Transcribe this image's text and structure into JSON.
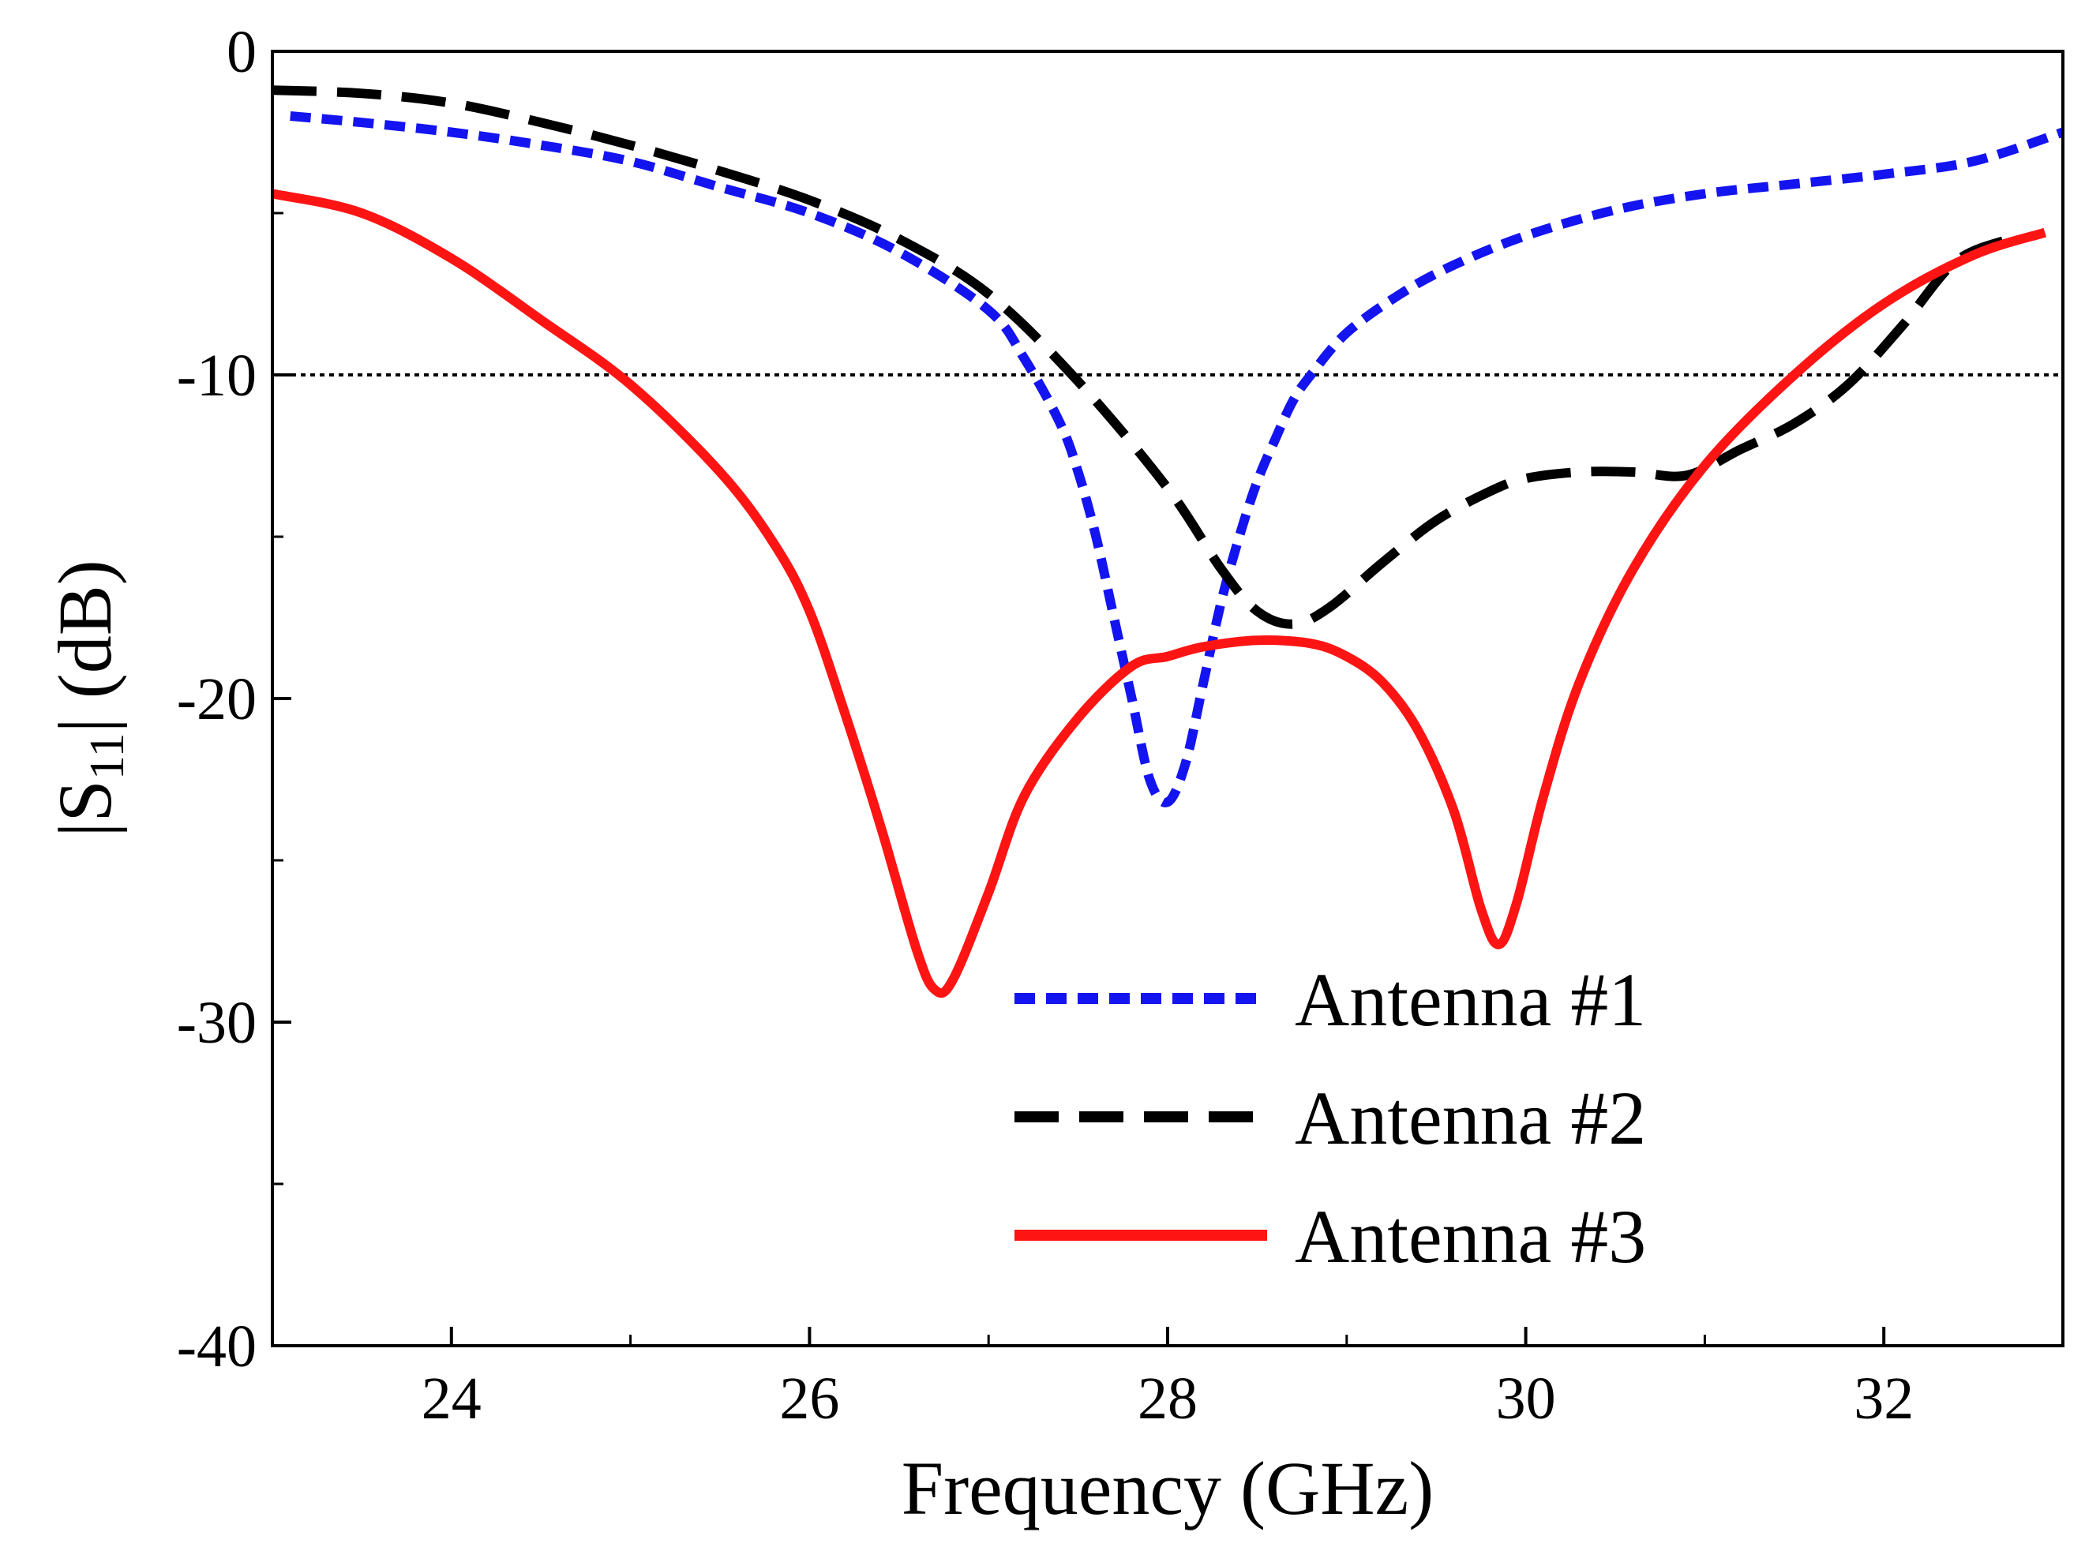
{
  "chart_data": {
    "type": "line",
    "title": "",
    "xlabel": "Frequency (GHz)",
    "ylabel": {
      "prefix": "|S",
      "subscript": "11",
      "suffix": "| (dB)"
    },
    "xlim": [
      23,
      33
    ],
    "ylim": [
      -40,
      0
    ],
    "x_ticks": [
      24,
      26,
      28,
      30,
      32
    ],
    "x_tick_labels": [
      "24",
      "26",
      "28",
      "30",
      "32"
    ],
    "x_minor_ticks": [
      25,
      27,
      29,
      31
    ],
    "y_ticks": [
      0,
      -10,
      -20,
      -30,
      -40
    ],
    "y_tick_labels": [
      "0",
      "-10",
      "-20",
      "-30",
      "-40"
    ],
    "y_minor_ticks": [
      -5,
      -15,
      -25,
      -35
    ],
    "reference_line": {
      "y": -10,
      "style": "dotted",
      "color": "#000000"
    },
    "legend": {
      "placement": "lower-right"
    },
    "series": [
      {
        "name": "Antenna #1",
        "color": "#1414f0",
        "style": "short-dash",
        "x": [
          23.1,
          23.5,
          24.0,
          24.5,
          25.0,
          25.5,
          26.0,
          26.5,
          27.0,
          27.2,
          27.4,
          27.5,
          27.6,
          27.7,
          27.8,
          27.9,
          28.0,
          28.1,
          28.2,
          28.3,
          28.4,
          28.5,
          28.6,
          28.7,
          28.8,
          29.0,
          29.3,
          29.6,
          30.0,
          30.5,
          31.0,
          31.5,
          32.0,
          32.5,
          33.0
        ],
        "y": [
          -2.0,
          -2.2,
          -2.5,
          -2.9,
          -3.4,
          -4.2,
          -5.0,
          -6.2,
          -8.0,
          -9.5,
          -11.5,
          -13.0,
          -15.0,
          -17.5,
          -20.0,
          -22.5,
          -23.2,
          -22.0,
          -19.5,
          -17.0,
          -15.0,
          -13.3,
          -12.0,
          -10.8,
          -10.0,
          -8.7,
          -7.5,
          -6.6,
          -5.7,
          -4.9,
          -4.4,
          -4.1,
          -3.8,
          -3.4,
          -2.5
        ]
      },
      {
        "name": "Antenna #2",
        "color": "#000000",
        "style": "long-dash",
        "x": [
          23.0,
          23.5,
          24.0,
          24.5,
          25.0,
          25.5,
          26.0,
          26.5,
          27.0,
          27.5,
          28.0,
          28.3,
          28.5,
          28.7,
          28.9,
          29.2,
          29.5,
          29.8,
          30.0,
          30.3,
          30.6,
          30.9,
          31.2,
          31.5,
          31.8,
          32.1,
          32.4,
          32.7
        ],
        "y": [
          -1.2,
          -1.3,
          -1.6,
          -2.2,
          -2.9,
          -3.7,
          -4.6,
          -5.8,
          -7.5,
          -10.2,
          -13.5,
          -16.0,
          -17.3,
          -17.7,
          -17.2,
          -15.8,
          -14.5,
          -13.6,
          -13.2,
          -13.0,
          -13.0,
          -13.1,
          -12.3,
          -11.5,
          -10.3,
          -8.5,
          -6.5,
          -5.8
        ]
      },
      {
        "name": "Antenna #3",
        "color": "#ff1414",
        "style": "solid",
        "x": [
          23.0,
          23.5,
          24.0,
          24.5,
          25.0,
          25.5,
          25.8,
          26.0,
          26.2,
          26.4,
          26.6,
          26.7,
          26.8,
          27.0,
          27.2,
          27.5,
          27.8,
          28.0,
          28.2,
          28.5,
          28.8,
          29.0,
          29.2,
          29.4,
          29.6,
          29.75,
          29.85,
          29.95,
          30.1,
          30.3,
          30.6,
          31.0,
          31.5,
          32.0,
          32.5,
          32.9
        ],
        "y": [
          -4.4,
          -5.0,
          -6.4,
          -8.3,
          -10.3,
          -13.0,
          -15.2,
          -17.3,
          -20.5,
          -24.0,
          -27.8,
          -29.0,
          -28.7,
          -26.0,
          -23.0,
          -20.6,
          -19.0,
          -18.7,
          -18.4,
          -18.2,
          -18.3,
          -18.7,
          -19.5,
          -21.0,
          -23.5,
          -26.5,
          -27.6,
          -26.3,
          -23.0,
          -19.5,
          -16.0,
          -12.8,
          -10.0,
          -7.8,
          -6.3,
          -5.6
        ]
      }
    ]
  }
}
